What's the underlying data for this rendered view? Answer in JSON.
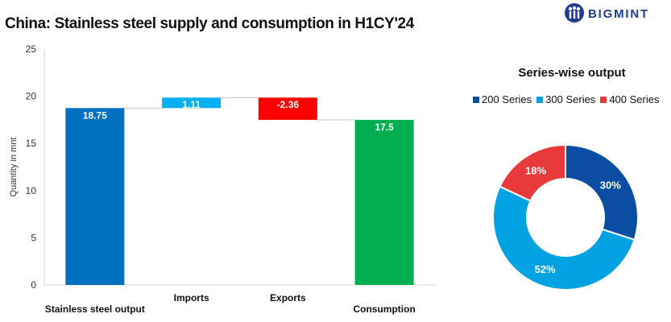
{
  "header": {
    "title": "China: Stainless steel supply and consumption in H1CY'24",
    "logo_text": "BIGMINT"
  },
  "chart_data": [
    {
      "type": "waterfall",
      "title": "China: Stainless steel supply and consumption in H1CY'24",
      "ylabel": "Quantity in mnt",
      "ylim": [
        0,
        25
      ],
      "yticks": [
        0,
        5,
        10,
        15,
        20,
        25
      ],
      "categories": [
        "Stainless steel output",
        "Imports",
        "Exports",
        "Consumption"
      ],
      "values": [
        18.75,
        1.11,
        -2.36,
        17.5
      ],
      "labels": [
        "18.75",
        "1.11",
        "-2.36",
        "17.5"
      ],
      "bar_kind": [
        "total",
        "delta",
        "delta",
        "total"
      ],
      "colors": [
        "#0070c0",
        "#00b0f0",
        "#ff0000",
        "#00b050"
      ]
    },
    {
      "type": "donut",
      "title": "Series-wise output",
      "categories": [
        "200 Series",
        "300 Series",
        "400 Series"
      ],
      "values": [
        30,
        52,
        18
      ],
      "labels": [
        "30%",
        "52%",
        "18%"
      ],
      "colors": [
        "#0a4ea3",
        "#00a2e2",
        "#e8393b"
      ],
      "legend_position": "top"
    }
  ]
}
